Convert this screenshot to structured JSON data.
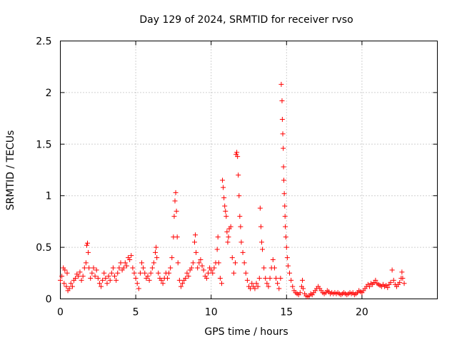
{
  "chart_data": {
    "type": "scatter",
    "title": "Day 129 of 2024, SRMTID for receiver rvso",
    "xlabel": "GPS time / hours",
    "ylabel": "SRMTID / TECUs",
    "xlim": [
      0,
      25
    ],
    "ylim": [
      0,
      2.5
    ],
    "xticks": [
      0,
      5,
      10,
      15,
      20
    ],
    "xtick_labels": [
      "0",
      "5",
      "10",
      "15",
      "20"
    ],
    "yticks": [
      0,
      0.5,
      1,
      1.5,
      2,
      2.5
    ],
    "ytick_labels": [
      "0",
      "0.5",
      "1",
      "1.5",
      "2",
      "2.5"
    ],
    "grid": true,
    "marker": "+",
    "color": "#ff0000",
    "series": [
      {
        "name": "SRMTID",
        "points": [
          [
            0.0,
            0.18
          ],
          [
            0.1,
            0.22
          ],
          [
            0.2,
            0.3
          ],
          [
            0.25,
            0.15
          ],
          [
            0.3,
            0.28
          ],
          [
            0.4,
            0.12
          ],
          [
            0.45,
            0.25
          ],
          [
            0.5,
            0.08
          ],
          [
            0.6,
            0.1
          ],
          [
            0.7,
            0.15
          ],
          [
            0.8,
            0.12
          ],
          [
            0.9,
            0.18
          ],
          [
            1.0,
            0.2
          ],
          [
            1.1,
            0.24
          ],
          [
            1.2,
            0.22
          ],
          [
            1.3,
            0.26
          ],
          [
            1.4,
            0.18
          ],
          [
            1.5,
            0.22
          ],
          [
            1.6,
            0.3
          ],
          [
            1.7,
            0.35
          ],
          [
            1.75,
            0.52
          ],
          [
            1.8,
            0.54
          ],
          [
            1.85,
            0.45
          ],
          [
            1.9,
            0.3
          ],
          [
            2.0,
            0.2
          ],
          [
            2.1,
            0.25
          ],
          [
            2.2,
            0.3
          ],
          [
            2.3,
            0.22
          ],
          [
            2.4,
            0.28
          ],
          [
            2.5,
            0.2
          ],
          [
            2.6,
            0.15
          ],
          [
            2.7,
            0.12
          ],
          [
            2.8,
            0.18
          ],
          [
            2.9,
            0.25
          ],
          [
            3.0,
            0.2
          ],
          [
            3.1,
            0.15
          ],
          [
            3.2,
            0.22
          ],
          [
            3.3,
            0.18
          ],
          [
            3.4,
            0.25
          ],
          [
            3.5,
            0.3
          ],
          [
            3.6,
            0.22
          ],
          [
            3.7,
            0.18
          ],
          [
            3.8,
            0.25
          ],
          [
            3.9,
            0.3
          ],
          [
            4.0,
            0.35
          ],
          [
            4.1,
            0.28
          ],
          [
            4.2,
            0.3
          ],
          [
            4.3,
            0.35
          ],
          [
            4.4,
            0.32
          ],
          [
            4.5,
            0.4
          ],
          [
            4.6,
            0.38
          ],
          [
            4.7,
            0.42
          ],
          [
            4.8,
            0.3
          ],
          [
            4.9,
            0.25
          ],
          [
            5.0,
            0.2
          ],
          [
            5.1,
            0.15
          ],
          [
            5.2,
            0.1
          ],
          [
            5.3,
            0.25
          ],
          [
            5.4,
            0.35
          ],
          [
            5.5,
            0.3
          ],
          [
            5.6,
            0.25
          ],
          [
            5.7,
            0.2
          ],
          [
            5.8,
            0.22
          ],
          [
            5.9,
            0.18
          ],
          [
            6.0,
            0.25
          ],
          [
            6.1,
            0.3
          ],
          [
            6.2,
            0.35
          ],
          [
            6.3,
            0.45
          ],
          [
            6.35,
            0.5
          ],
          [
            6.4,
            0.4
          ],
          [
            6.5,
            0.25
          ],
          [
            6.6,
            0.2
          ],
          [
            6.7,
            0.18
          ],
          [
            6.8,
            0.15
          ],
          [
            6.9,
            0.2
          ],
          [
            7.0,
            0.25
          ],
          [
            7.1,
            0.2
          ],
          [
            7.2,
            0.25
          ],
          [
            7.3,
            0.3
          ],
          [
            7.4,
            0.4
          ],
          [
            7.5,
            0.6
          ],
          [
            7.55,
            0.8
          ],
          [
            7.6,
            0.95
          ],
          [
            7.65,
            1.03
          ],
          [
            7.7,
            0.85
          ],
          [
            7.75,
            0.6
          ],
          [
            7.8,
            0.35
          ],
          [
            7.9,
            0.18
          ],
          [
            8.0,
            0.12
          ],
          [
            8.1,
            0.15
          ],
          [
            8.2,
            0.18
          ],
          [
            8.3,
            0.2
          ],
          [
            8.4,
            0.25
          ],
          [
            8.5,
            0.22
          ],
          [
            8.6,
            0.28
          ],
          [
            8.7,
            0.3
          ],
          [
            8.8,
            0.35
          ],
          [
            8.9,
            0.55
          ],
          [
            8.95,
            0.62
          ],
          [
            9.0,
            0.45
          ],
          [
            9.1,
            0.3
          ],
          [
            9.2,
            0.35
          ],
          [
            9.3,
            0.38
          ],
          [
            9.4,
            0.32
          ],
          [
            9.5,
            0.28
          ],
          [
            9.6,
            0.22
          ],
          [
            9.7,
            0.2
          ],
          [
            9.8,
            0.25
          ],
          [
            9.9,
            0.3
          ],
          [
            10.0,
            0.28
          ],
          [
            10.1,
            0.25
          ],
          [
            10.2,
            0.3
          ],
          [
            10.3,
            0.35
          ],
          [
            10.4,
            0.48
          ],
          [
            10.45,
            0.6
          ],
          [
            10.5,
            0.35
          ],
          [
            10.6,
            0.2
          ],
          [
            10.7,
            0.15
          ],
          [
            10.75,
            1.15
          ],
          [
            10.8,
            1.08
          ],
          [
            10.85,
            0.98
          ],
          [
            10.9,
            0.9
          ],
          [
            10.95,
            0.85
          ],
          [
            11.0,
            0.8
          ],
          [
            11.05,
            0.65
          ],
          [
            11.1,
            0.55
          ],
          [
            11.15,
            0.6
          ],
          [
            11.2,
            0.68
          ],
          [
            11.3,
            0.7
          ],
          [
            11.4,
            0.4
          ],
          [
            11.5,
            0.25
          ],
          [
            11.6,
            0.35
          ],
          [
            11.65,
            1.4
          ],
          [
            11.7,
            1.42
          ],
          [
            11.75,
            1.38
          ],
          [
            11.8,
            1.2
          ],
          [
            11.85,
            1.0
          ],
          [
            11.9,
            0.8
          ],
          [
            11.95,
            0.7
          ],
          [
            12.0,
            0.55
          ],
          [
            12.1,
            0.45
          ],
          [
            12.2,
            0.35
          ],
          [
            12.3,
            0.25
          ],
          [
            12.4,
            0.18
          ],
          [
            12.5,
            0.12
          ],
          [
            12.6,
            0.1
          ],
          [
            12.7,
            0.15
          ],
          [
            12.8,
            0.12
          ],
          [
            12.9,
            0.1
          ],
          [
            13.0,
            0.15
          ],
          [
            13.1,
            0.12
          ],
          [
            13.2,
            0.2
          ],
          [
            13.25,
            0.88
          ],
          [
            13.3,
            0.7
          ],
          [
            13.35,
            0.55
          ],
          [
            13.4,
            0.48
          ],
          [
            13.5,
            0.3
          ],
          [
            13.6,
            0.2
          ],
          [
            13.7,
            0.15
          ],
          [
            13.8,
            0.12
          ],
          [
            13.9,
            0.2
          ],
          [
            14.0,
            0.3
          ],
          [
            14.1,
            0.38
          ],
          [
            14.2,
            0.3
          ],
          [
            14.3,
            0.2
          ],
          [
            14.4,
            0.15
          ],
          [
            14.5,
            0.1
          ],
          [
            14.6,
            0.2
          ],
          [
            14.65,
            2.08
          ],
          [
            14.7,
            1.92
          ],
          [
            14.72,
            1.74
          ],
          [
            14.75,
            1.6
          ],
          [
            14.78,
            1.46
          ],
          [
            14.8,
            1.28
          ],
          [
            14.82,
            1.15
          ],
          [
            14.85,
            1.02
          ],
          [
            14.88,
            0.9
          ],
          [
            14.9,
            0.8
          ],
          [
            14.92,
            0.7
          ],
          [
            14.95,
            0.6
          ],
          [
            15.0,
            0.5
          ],
          [
            15.05,
            0.4
          ],
          [
            15.1,
            0.32
          ],
          [
            15.2,
            0.25
          ],
          [
            15.3,
            0.18
          ],
          [
            15.4,
            0.12
          ],
          [
            15.5,
            0.08
          ],
          [
            15.6,
            0.06
          ],
          [
            15.7,
            0.05
          ],
          [
            15.8,
            0.04
          ],
          [
            15.9,
            0.06
          ],
          [
            16.0,
            0.12
          ],
          [
            16.05,
            0.18
          ],
          [
            16.1,
            0.1
          ],
          [
            16.2,
            0.05
          ],
          [
            16.3,
            0.03
          ],
          [
            16.4,
            0.02
          ],
          [
            16.5,
            0.03
          ],
          [
            16.6,
            0.05
          ],
          [
            16.7,
            0.04
          ],
          [
            16.8,
            0.06
          ],
          [
            16.9,
            0.08
          ],
          [
            17.0,
            0.1
          ],
          [
            17.1,
            0.12
          ],
          [
            17.2,
            0.1
          ],
          [
            17.3,
            0.08
          ],
          [
            17.4,
            0.06
          ],
          [
            17.5,
            0.05
          ],
          [
            17.6,
            0.06
          ],
          [
            17.7,
            0.08
          ],
          [
            17.8,
            0.07
          ],
          [
            17.9,
            0.05
          ],
          [
            18.0,
            0.06
          ],
          [
            18.1,
            0.05
          ],
          [
            18.2,
            0.06
          ],
          [
            18.3,
            0.05
          ],
          [
            18.4,
            0.06
          ],
          [
            18.5,
            0.05
          ],
          [
            18.6,
            0.04
          ],
          [
            18.7,
            0.05
          ],
          [
            18.8,
            0.06
          ],
          [
            18.9,
            0.05
          ],
          [
            19.0,
            0.04
          ],
          [
            19.1,
            0.05
          ],
          [
            19.2,
            0.06
          ],
          [
            19.3,
            0.05
          ],
          [
            19.4,
            0.06
          ],
          [
            19.5,
            0.04
          ],
          [
            19.6,
            0.05
          ],
          [
            19.7,
            0.06
          ],
          [
            19.8,
            0.08
          ],
          [
            19.9,
            0.07
          ],
          [
            20.0,
            0.06
          ],
          [
            20.1,
            0.08
          ],
          [
            20.2,
            0.1
          ],
          [
            20.3,
            0.12
          ],
          [
            20.4,
            0.14
          ],
          [
            20.5,
            0.12
          ],
          [
            20.6,
            0.15
          ],
          [
            20.7,
            0.14
          ],
          [
            20.8,
            0.16
          ],
          [
            20.9,
            0.18
          ],
          [
            21.0,
            0.15
          ],
          [
            21.1,
            0.14
          ],
          [
            21.2,
            0.13
          ],
          [
            21.3,
            0.12
          ],
          [
            21.4,
            0.14
          ],
          [
            21.5,
            0.12
          ],
          [
            21.6,
            0.13
          ],
          [
            21.7,
            0.11
          ],
          [
            21.8,
            0.14
          ],
          [
            21.9,
            0.16
          ],
          [
            22.0,
            0.28
          ],
          [
            22.1,
            0.18
          ],
          [
            22.2,
            0.14
          ],
          [
            22.3,
            0.12
          ],
          [
            22.4,
            0.14
          ],
          [
            22.5,
            0.16
          ],
          [
            22.6,
            0.2
          ],
          [
            22.65,
            0.26
          ],
          [
            22.7,
            0.2
          ],
          [
            22.8,
            0.15
          ]
        ]
      }
    ]
  }
}
